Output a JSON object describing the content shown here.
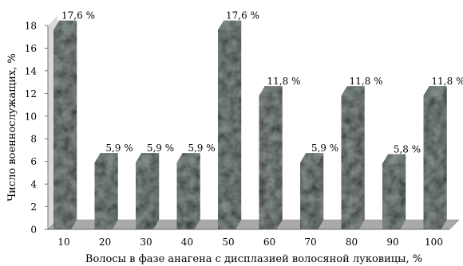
{
  "chart_data": {
    "type": "bar",
    "title": "",
    "xlabel": "Волосы в фазе анагена с дисплазией волосяной луковицы, %",
    "ylabel": "Число военнослужащих, %",
    "ylim": [
      0,
      18
    ],
    "yticks": [
      0,
      2,
      4,
      6,
      8,
      10,
      12,
      14,
      16,
      18
    ],
    "grid": false,
    "legend": "none",
    "style": "3d-textured-bars",
    "categories": [
      "10",
      "20",
      "30",
      "40",
      "50",
      "60",
      "70",
      "80",
      "90",
      "100"
    ],
    "values": [
      17.6,
      5.9,
      5.9,
      5.9,
      17.6,
      11.8,
      5.9,
      11.8,
      5.8,
      11.8
    ],
    "data_labels": [
      "17,6 %",
      "5,9 %",
      "5,9 %",
      "5,9 %",
      "17,6 %",
      "11,8 %",
      "5,9 %",
      "11,8 %",
      "5,8 %",
      "11,8 %"
    ],
    "colors": {
      "bar_face": "#1e2a26",
      "bar_side": "#0f1614",
      "bar_top": "#3c4a45",
      "floor": "#a9a9a9",
      "back_wall": "#d9d9d9"
    }
  }
}
